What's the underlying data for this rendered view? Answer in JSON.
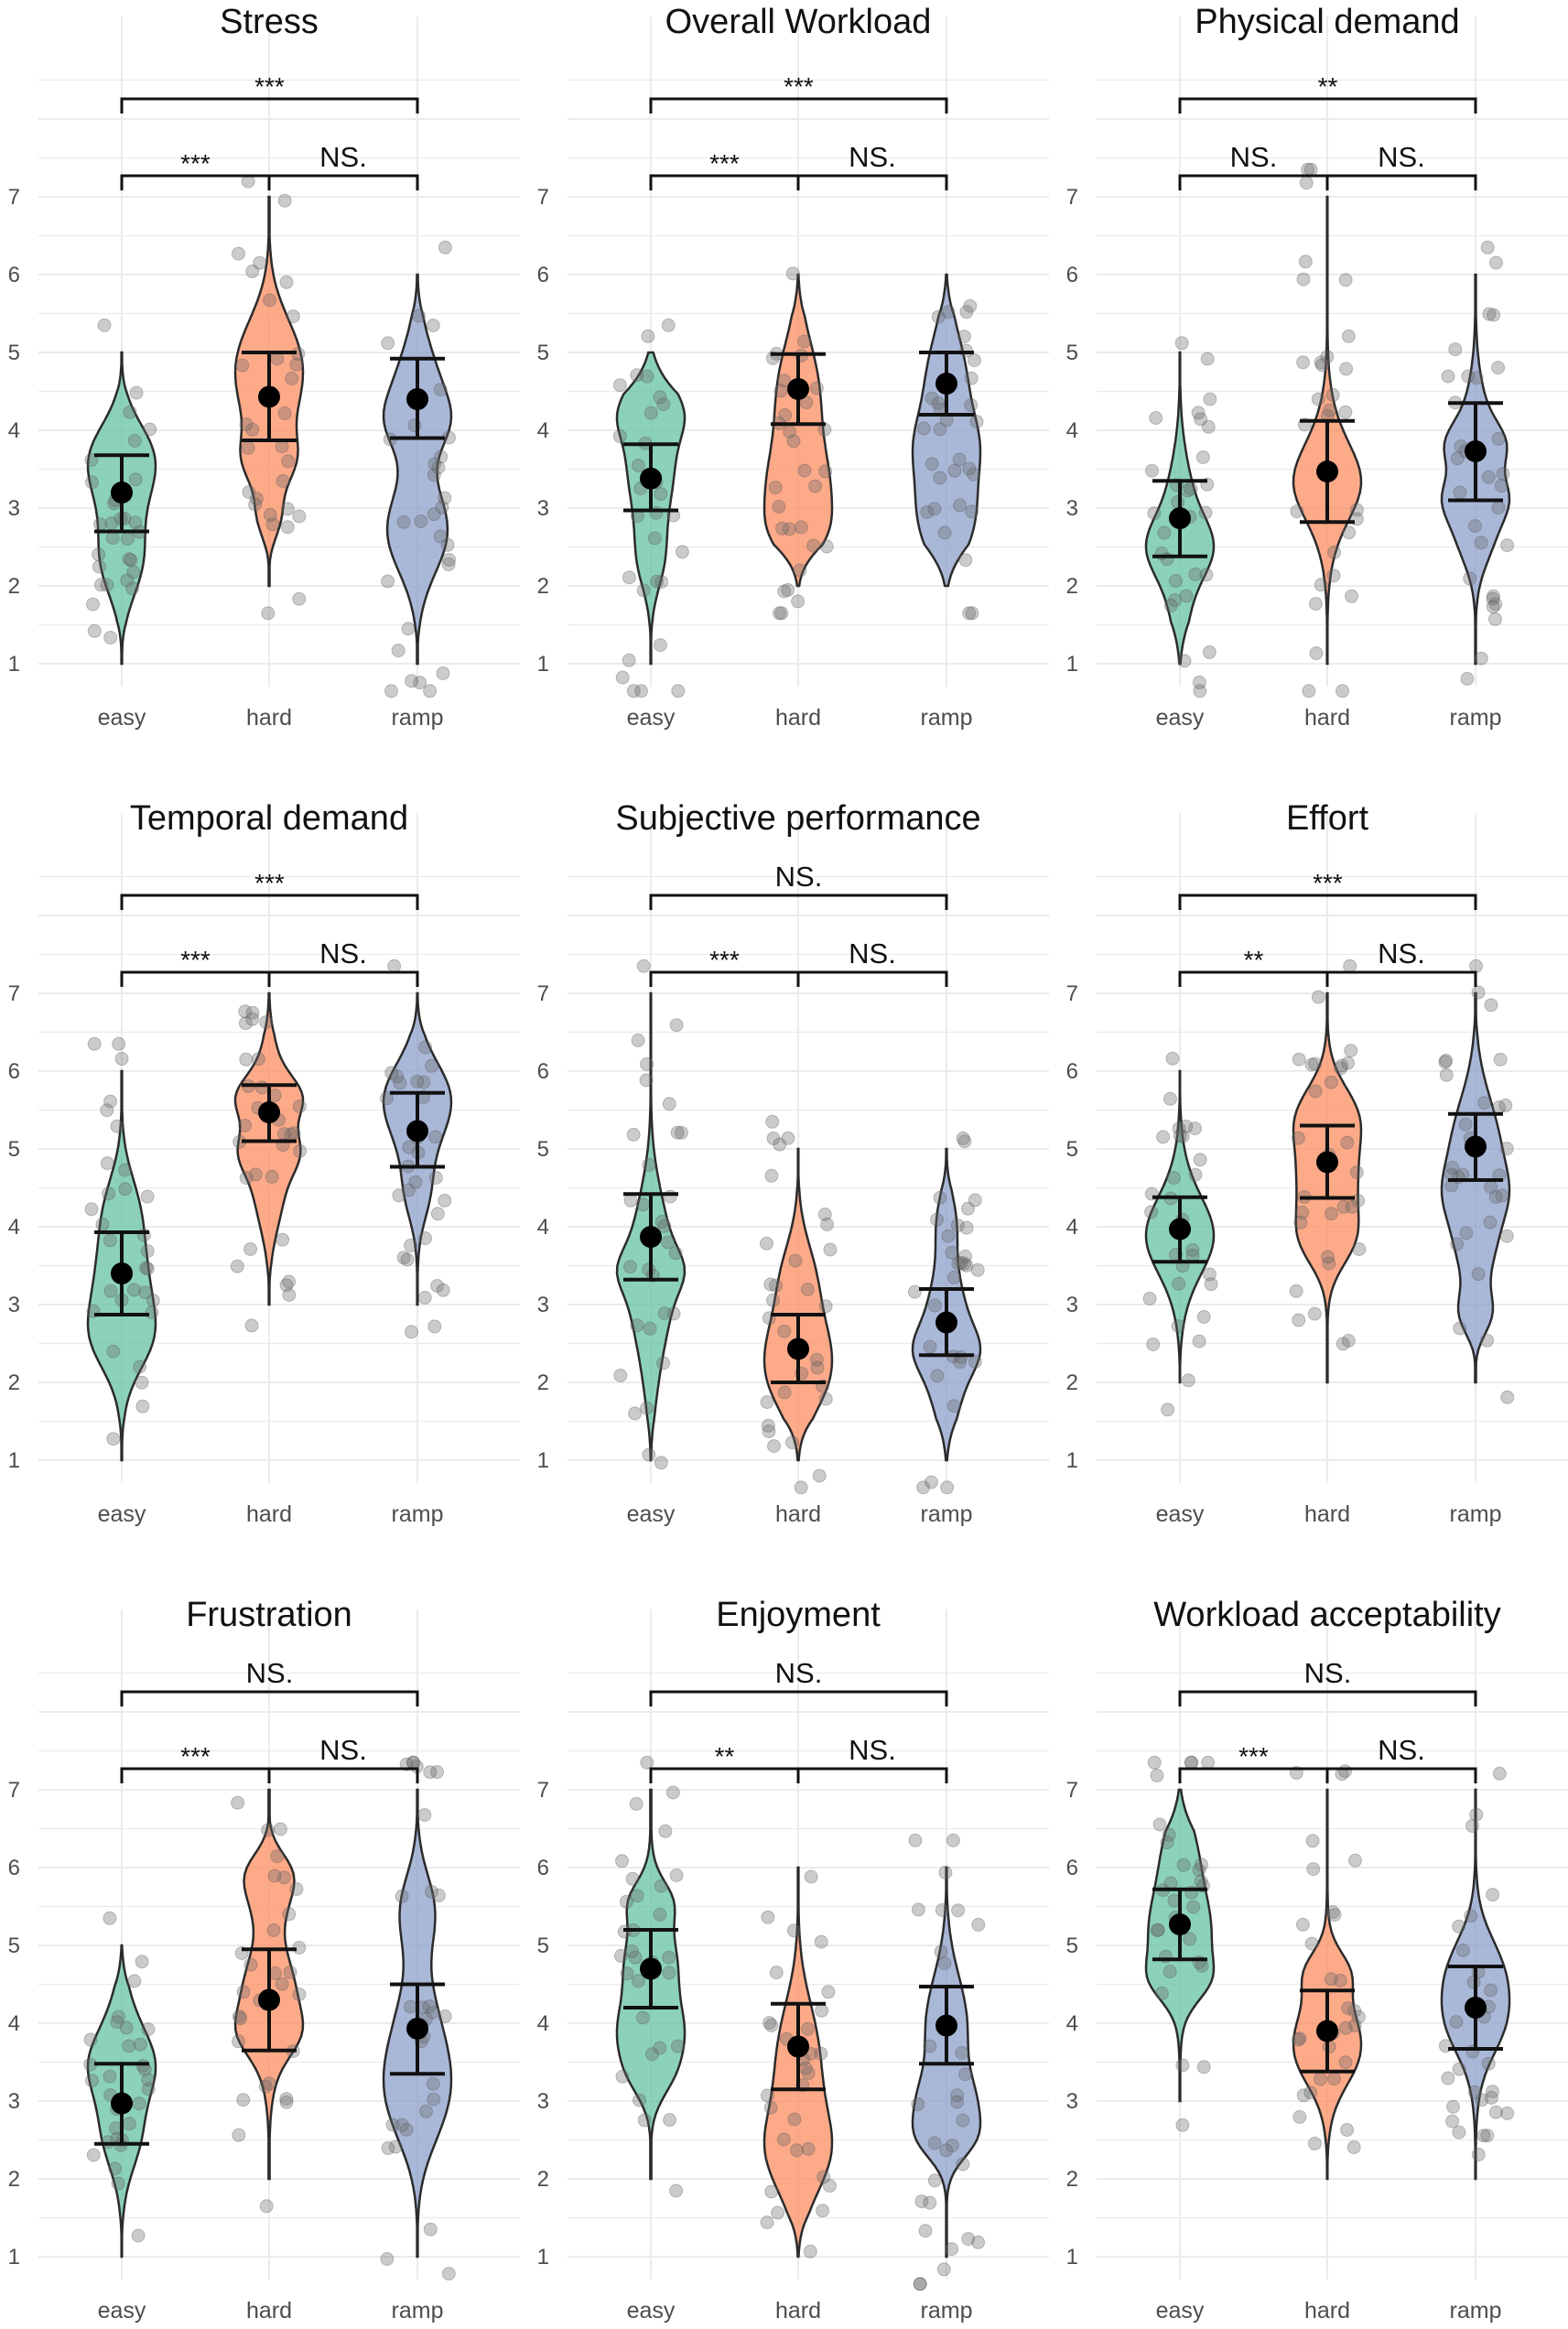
{
  "chart_data": [
    {
      "type": "violin",
      "title": "Stress",
      "categories": [
        "easy",
        "hard",
        "ramp"
      ],
      "y_ticks": [
        1,
        2,
        3,
        4,
        5,
        6,
        7
      ],
      "ylim": [
        0.6,
        8.6
      ],
      "series": [
        {
          "name": "easy",
          "range": [
            1,
            5
          ],
          "mean": 3.2,
          "ci": [
            2.7,
            3.68
          ]
        },
        {
          "name": "hard",
          "range": [
            2,
            7
          ],
          "mean": 4.43,
          "ci": [
            3.87,
            5.0
          ]
        },
        {
          "name": "ramp",
          "range": [
            1,
            6
          ],
          "mean": 4.4,
          "ci": [
            3.9,
            4.92
          ]
        }
      ],
      "significance": [
        {
          "from": "easy",
          "to": "hard",
          "label": "***",
          "level": 1
        },
        {
          "from": "hard",
          "to": "ramp",
          "label": "NS.",
          "level": 1
        },
        {
          "from": "easy",
          "to": "ramp",
          "label": "***",
          "level": 2
        }
      ]
    },
    {
      "type": "violin",
      "title": "Overall Workload",
      "categories": [
        "easy",
        "hard",
        "ramp"
      ],
      "y_ticks": [
        1,
        2,
        3,
        4,
        5,
        6,
        7
      ],
      "ylim": [
        0.6,
        8.6
      ],
      "series": [
        {
          "name": "easy",
          "range": [
            1,
            5
          ],
          "mean": 3.38,
          "ci": [
            2.97,
            3.82
          ]
        },
        {
          "name": "hard",
          "range": [
            2,
            6
          ],
          "mean": 4.53,
          "ci": [
            4.08,
            4.98
          ]
        },
        {
          "name": "ramp",
          "range": [
            2,
            6
          ],
          "mean": 4.6,
          "ci": [
            4.2,
            5.0
          ]
        }
      ],
      "significance": [
        {
          "from": "easy",
          "to": "hard",
          "label": "***",
          "level": 1
        },
        {
          "from": "hard",
          "to": "ramp",
          "label": "NS.",
          "level": 1
        },
        {
          "from": "easy",
          "to": "ramp",
          "label": "***",
          "level": 2
        }
      ]
    },
    {
      "type": "violin",
      "title": "Physical demand",
      "categories": [
        "easy",
        "hard",
        "ramp"
      ],
      "y_ticks": [
        1,
        2,
        3,
        4,
        5,
        6,
        7
      ],
      "ylim": [
        0.6,
        8.6
      ],
      "series": [
        {
          "name": "easy",
          "range": [
            1,
            5
          ],
          "mean": 2.87,
          "ci": [
            2.38,
            3.35
          ]
        },
        {
          "name": "hard",
          "range": [
            1,
            7
          ],
          "mean": 3.47,
          "ci": [
            2.82,
            4.12
          ]
        },
        {
          "name": "ramp",
          "range": [
            1,
            6
          ],
          "mean": 3.73,
          "ci": [
            3.1,
            4.35
          ]
        }
      ],
      "significance": [
        {
          "from": "easy",
          "to": "hard",
          "label": "NS.",
          "level": 1
        },
        {
          "from": "hard",
          "to": "ramp",
          "label": "NS.",
          "level": 1
        },
        {
          "from": "easy",
          "to": "ramp",
          "label": "**",
          "level": 2
        }
      ]
    },
    {
      "type": "violin",
      "title": "Temporal demand",
      "categories": [
        "easy",
        "hard",
        "ramp"
      ],
      "y_ticks": [
        1,
        2,
        3,
        4,
        5,
        6,
        7
      ],
      "ylim": [
        0.6,
        8.6
      ],
      "series": [
        {
          "name": "easy",
          "range": [
            1,
            6
          ],
          "mean": 3.4,
          "ci": [
            2.87,
            3.93
          ]
        },
        {
          "name": "hard",
          "range": [
            3,
            7
          ],
          "mean": 5.47,
          "ci": [
            5.1,
            5.82
          ]
        },
        {
          "name": "ramp",
          "range": [
            3,
            7
          ],
          "mean": 5.23,
          "ci": [
            4.77,
            5.72
          ]
        }
      ],
      "significance": [
        {
          "from": "easy",
          "to": "hard",
          "label": "***",
          "level": 1
        },
        {
          "from": "hard",
          "to": "ramp",
          "label": "NS.",
          "level": 1
        },
        {
          "from": "easy",
          "to": "ramp",
          "label": "***",
          "level": 2
        }
      ]
    },
    {
      "type": "violin",
      "title": "Subjective performance",
      "categories": [
        "easy",
        "hard",
        "ramp"
      ],
      "y_ticks": [
        1,
        2,
        3,
        4,
        5,
        6,
        7
      ],
      "ylim": [
        0.6,
        8.6
      ],
      "series": [
        {
          "name": "easy",
          "range": [
            1,
            7
          ],
          "mean": 3.87,
          "ci": [
            3.32,
            4.42
          ]
        },
        {
          "name": "hard",
          "range": [
            1,
            5
          ],
          "mean": 2.43,
          "ci": [
            2.0,
            2.87
          ]
        },
        {
          "name": "ramp",
          "range": [
            1,
            5
          ],
          "mean": 2.77,
          "ci": [
            2.35,
            3.2
          ]
        }
      ],
      "significance": [
        {
          "from": "easy",
          "to": "hard",
          "label": "***",
          "level": 1
        },
        {
          "from": "hard",
          "to": "ramp",
          "label": "NS.",
          "level": 1
        },
        {
          "from": "easy",
          "to": "ramp",
          "label": "NS.",
          "level": 2
        }
      ]
    },
    {
      "type": "violin",
      "title": "Effort",
      "categories": [
        "easy",
        "hard",
        "ramp"
      ],
      "y_ticks": [
        1,
        2,
        3,
        4,
        5,
        6,
        7
      ],
      "ylim": [
        0.6,
        8.6
      ],
      "series": [
        {
          "name": "easy",
          "range": [
            2,
            6
          ],
          "mean": 3.97,
          "ci": [
            3.55,
            4.38
          ]
        },
        {
          "name": "hard",
          "range": [
            2,
            7
          ],
          "mean": 4.83,
          "ci": [
            4.37,
            5.3
          ]
        },
        {
          "name": "ramp",
          "range": [
            2,
            7
          ],
          "mean": 5.03,
          "ci": [
            4.6,
            5.45
          ]
        }
      ],
      "significance": [
        {
          "from": "easy",
          "to": "hard",
          "label": "**",
          "level": 1
        },
        {
          "from": "hard",
          "to": "ramp",
          "label": "NS.",
          "level": 1
        },
        {
          "from": "easy",
          "to": "ramp",
          "label": "***",
          "level": 2
        }
      ]
    },
    {
      "type": "violin",
      "title": "Frustration",
      "categories": [
        "easy",
        "hard",
        "ramp"
      ],
      "y_ticks": [
        1,
        2,
        3,
        4,
        5,
        6,
        7
      ],
      "ylim": [
        0.6,
        8.6
      ],
      "series": [
        {
          "name": "easy",
          "range": [
            1,
            5
          ],
          "mean": 2.97,
          "ci": [
            2.45,
            3.48
          ]
        },
        {
          "name": "hard",
          "range": [
            2,
            7
          ],
          "mean": 4.3,
          "ci": [
            3.65,
            4.95
          ]
        },
        {
          "name": "ramp",
          "range": [
            1,
            7
          ],
          "mean": 3.93,
          "ci": [
            3.35,
            4.5
          ]
        }
      ],
      "significance": [
        {
          "from": "easy",
          "to": "hard",
          "label": "***",
          "level": 1
        },
        {
          "from": "hard",
          "to": "ramp",
          "label": "NS.",
          "level": 1
        },
        {
          "from": "easy",
          "to": "ramp",
          "label": "NS.",
          "level": 2
        }
      ]
    },
    {
      "type": "violin",
      "title": "Enjoyment",
      "categories": [
        "easy",
        "hard",
        "ramp"
      ],
      "y_ticks": [
        1,
        2,
        3,
        4,
        5,
        6,
        7
      ],
      "ylim": [
        0.6,
        8.6
      ],
      "series": [
        {
          "name": "easy",
          "range": [
            2,
            7
          ],
          "mean": 4.7,
          "ci": [
            4.2,
            5.2
          ]
        },
        {
          "name": "hard",
          "range": [
            1,
            6
          ],
          "mean": 3.7,
          "ci": [
            3.15,
            4.25
          ]
        },
        {
          "name": "ramp",
          "range": [
            1,
            6
          ],
          "mean": 3.97,
          "ci": [
            3.48,
            4.47
          ]
        }
      ],
      "significance": [
        {
          "from": "easy",
          "to": "hard",
          "label": "**",
          "level": 1
        },
        {
          "from": "hard",
          "to": "ramp",
          "label": "NS.",
          "level": 1
        },
        {
          "from": "easy",
          "to": "ramp",
          "label": "NS.",
          "level": 2
        }
      ]
    },
    {
      "type": "violin",
      "title": "Workload acceptability",
      "categories": [
        "easy",
        "hard",
        "ramp"
      ],
      "y_ticks": [
        1,
        2,
        3,
        4,
        5,
        6,
        7
      ],
      "ylim": [
        0.6,
        8.6
      ],
      "series": [
        {
          "name": "easy",
          "range": [
            3,
            7
          ],
          "mean": 5.27,
          "ci": [
            4.82,
            5.72
          ]
        },
        {
          "name": "hard",
          "range": [
            2,
            7
          ],
          "mean": 3.9,
          "ci": [
            3.38,
            4.42
          ]
        },
        {
          "name": "ramp",
          "range": [
            2,
            7
          ],
          "mean": 4.2,
          "ci": [
            3.67,
            4.73
          ]
        }
      ],
      "significance": [
        {
          "from": "easy",
          "to": "hard",
          "label": "***",
          "level": 1
        },
        {
          "from": "hard",
          "to": "ramp",
          "label": "NS.",
          "level": 1
        },
        {
          "from": "easy",
          "to": "ramp",
          "label": "NS.",
          "level": 2
        }
      ]
    }
  ],
  "colors": {
    "easy": "#66c2a5",
    "hard": "#fc8d62",
    "ramp": "#8da0cb",
    "grid": "#ebebeb",
    "jitter": "#6b6b6b",
    "ink": "#111111"
  }
}
